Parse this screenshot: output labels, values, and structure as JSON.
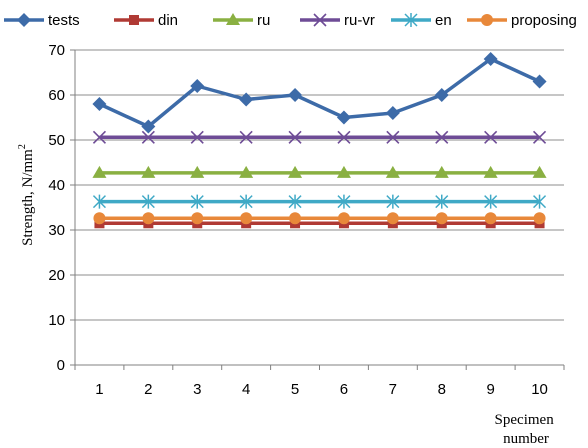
{
  "chart_data": {
    "type": "line",
    "title": "",
    "xlabel": "Specimen number",
    "xlabel_lines": [
      "Specimen",
      "number"
    ],
    "ylabel": "Strength, N/mm",
    "ylabel_superscript": "2",
    "ylim": [
      0,
      70
    ],
    "yticks": [
      "0",
      "10",
      "20",
      "30",
      "40",
      "50",
      "60",
      "70"
    ],
    "categories": [
      "1",
      "2",
      "3",
      "4",
      "5",
      "6",
      "7",
      "8",
      "9",
      "10"
    ],
    "grid": "horizontal",
    "legend_position": "top",
    "series": [
      {
        "name": "tests",
        "values": [
          58,
          53,
          62,
          59,
          60,
          55,
          56,
          60,
          68,
          63
        ],
        "color": "#3D6BA8",
        "marker": "diamond"
      },
      {
        "name": "din",
        "values": [
          31.5,
          31.5,
          31.5,
          31.5,
          31.5,
          31.5,
          31.5,
          31.5,
          31.5,
          31.5
        ],
        "color": "#B03A34",
        "marker": "square"
      },
      {
        "name": "ru",
        "values": [
          42.7,
          42.7,
          42.7,
          42.7,
          42.7,
          42.7,
          42.7,
          42.7,
          42.7,
          42.7
        ],
        "color": "#8AB042",
        "marker": "triangle"
      },
      {
        "name": "ru-vr",
        "values": [
          50.6,
          50.6,
          50.6,
          50.6,
          50.6,
          50.6,
          50.6,
          50.6,
          50.6,
          50.6
        ],
        "color": "#6E4C96",
        "marker": "x"
      },
      {
        "name": "en",
        "values": [
          36.3,
          36.3,
          36.3,
          36.3,
          36.3,
          36.3,
          36.3,
          36.3,
          36.3,
          36.3
        ],
        "color": "#3FA9C6",
        "marker": "asterisk"
      },
      {
        "name": "proposing",
        "values": [
          32.6,
          32.6,
          32.6,
          32.6,
          32.6,
          32.6,
          32.6,
          32.6,
          32.6,
          32.6
        ],
        "color": "#E8883A",
        "marker": "circle"
      }
    ]
  }
}
